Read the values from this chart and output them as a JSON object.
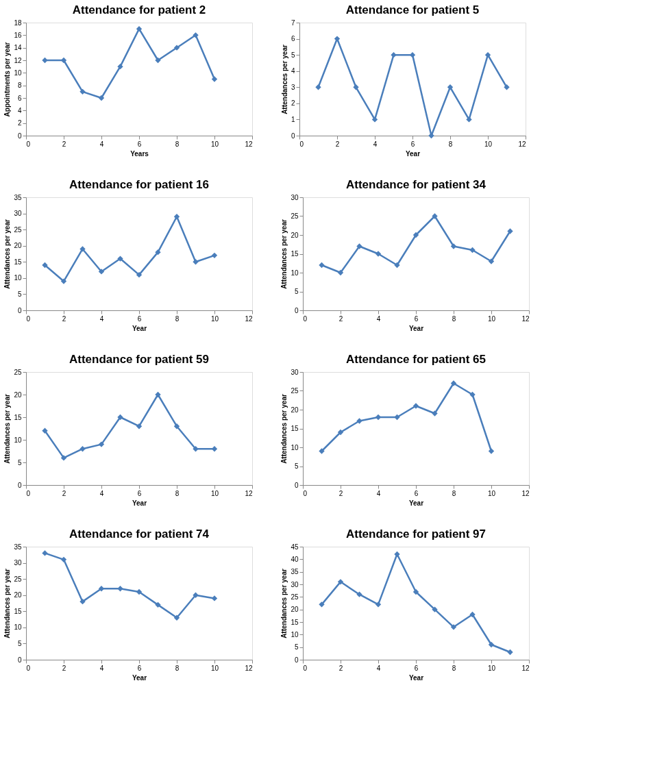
{
  "chart_data": [
    {
      "type": "line",
      "title": "Attendance for patient 2",
      "xlabel": "Years",
      "ylabel": "Appointments per year",
      "x": [
        1,
        2,
        3,
        4,
        5,
        6,
        7,
        8,
        9,
        10
      ],
      "series": [
        {
          "color": "#4a7ebb",
          "values": [
            12,
            12,
            7,
            6,
            11,
            17,
            12,
            14,
            16,
            9
          ]
        }
      ],
      "xlim": [
        0,
        12
      ],
      "xticks": [
        0,
        2,
        4,
        6,
        8,
        10,
        12
      ],
      "ylim": [
        0,
        18
      ],
      "yticks": [
        0,
        2,
        4,
        6,
        8,
        10,
        12,
        14,
        16,
        18
      ],
      "grid": false,
      "marker": "diamond",
      "line_style": "solid"
    },
    {
      "type": "line",
      "title": "Attendance for patient 5",
      "xlabel": "Year",
      "ylabel": "Attendances per year",
      "x": [
        1,
        2,
        3,
        4,
        5,
        6,
        7,
        8,
        9,
        10,
        11
      ],
      "series": [
        {
          "color": "#4a7ebb",
          "values": [
            3,
            6,
            3,
            1,
            5,
            5,
            0,
            3,
            1,
            5,
            3
          ]
        }
      ],
      "xlim": [
        0,
        12
      ],
      "xticks": [
        0,
        2,
        4,
        6,
        8,
        10,
        12
      ],
      "ylim": [
        0,
        7
      ],
      "yticks": [
        0,
        1,
        2,
        3,
        4,
        5,
        6,
        7
      ],
      "grid": false,
      "marker": "diamond",
      "line_style": "solid"
    },
    {
      "type": "line",
      "title": "Attendance for patient 16",
      "xlabel": "Year",
      "ylabel": "Attendances per year",
      "x": [
        1,
        2,
        3,
        4,
        5,
        6,
        7,
        8,
        9,
        10
      ],
      "series": [
        {
          "color": "#4a7ebb",
          "values": [
            14,
            9,
            19,
            12,
            16,
            11,
            18,
            29,
            15,
            17
          ]
        }
      ],
      "xlim": [
        0,
        12
      ],
      "xticks": [
        0,
        2,
        4,
        6,
        8,
        10,
        12
      ],
      "ylim": [
        0,
        35
      ],
      "yticks": [
        0,
        5,
        10,
        15,
        20,
        25,
        30,
        35
      ],
      "grid": false,
      "marker": "diamond",
      "line_style": "solid"
    },
    {
      "type": "line",
      "title": "Attendance for patient 34",
      "xlabel": "Year",
      "ylabel": "Attendances per year",
      "x": [
        1,
        2,
        3,
        4,
        5,
        6,
        7,
        8,
        9,
        10,
        11
      ],
      "series": [
        {
          "color": "#4a7ebb",
          "values": [
            12,
            10,
            17,
            15,
            12,
            20,
            25,
            17,
            16,
            13,
            21
          ]
        }
      ],
      "xlim": [
        0,
        12
      ],
      "xticks": [
        0,
        2,
        4,
        6,
        8,
        10,
        12
      ],
      "ylim": [
        0,
        30
      ],
      "yticks": [
        0,
        5,
        10,
        15,
        20,
        25,
        30
      ],
      "grid": false,
      "marker": "diamond",
      "line_style": "solid"
    },
    {
      "type": "line",
      "title": "Attendance for patient 59",
      "xlabel": "Year",
      "ylabel": "Attendances per year",
      "x": [
        1,
        2,
        3,
        4,
        5,
        6,
        7,
        8,
        9,
        10
      ],
      "series": [
        {
          "color": "#4a7ebb",
          "values": [
            12,
            6,
            8,
            9,
            15,
            13,
            20,
            13,
            8,
            8
          ]
        }
      ],
      "xlim": [
        0,
        12
      ],
      "xticks": [
        0,
        2,
        4,
        6,
        8,
        10,
        12
      ],
      "ylim": [
        0,
        25
      ],
      "yticks": [
        0,
        5,
        10,
        15,
        20,
        25
      ],
      "grid": false,
      "marker": "diamond",
      "line_style": "solid"
    },
    {
      "type": "line",
      "title": "Attendance for patient 65",
      "xlabel": "Year",
      "ylabel": "Attendances per year",
      "x": [
        1,
        2,
        3,
        4,
        5,
        6,
        7,
        8,
        9,
        10
      ],
      "series": [
        {
          "color": "#4a7ebb",
          "values": [
            9,
            14,
            17,
            18,
            18,
            21,
            19,
            27,
            24,
            9
          ]
        }
      ],
      "xlim": [
        0,
        12
      ],
      "xticks": [
        0,
        2,
        4,
        6,
        8,
        10,
        12
      ],
      "ylim": [
        0,
        30
      ],
      "yticks": [
        0,
        5,
        10,
        15,
        20,
        25,
        30
      ],
      "grid": false,
      "marker": "diamond",
      "line_style": "solid"
    },
    {
      "type": "line",
      "title": "Attendance for patient 74",
      "xlabel": "Year",
      "ylabel": "Attendances per year",
      "x": [
        1,
        2,
        3,
        4,
        5,
        6,
        7,
        8,
        9,
        10
      ],
      "series": [
        {
          "color": "#4a7ebb",
          "values": [
            33,
            31,
            18,
            22,
            22,
            21,
            17,
            13,
            20,
            19
          ]
        }
      ],
      "xlim": [
        0,
        12
      ],
      "xticks": [
        0,
        2,
        4,
        6,
        8,
        10,
        12
      ],
      "ylim": [
        0,
        35
      ],
      "yticks": [
        0,
        5,
        10,
        15,
        20,
        25,
        30,
        35
      ],
      "grid": false,
      "marker": "diamond",
      "line_style": "solid"
    },
    {
      "type": "line",
      "title": "Attendance for patient 97",
      "xlabel": "Year",
      "ylabel": "Attendances per year",
      "x": [
        1,
        2,
        3,
        4,
        5,
        6,
        7,
        8,
        9,
        10,
        11
      ],
      "series": [
        {
          "color": "#4a7ebb",
          "values": [
            22,
            31,
            26,
            22,
            42,
            27,
            20,
            13,
            18,
            6,
            3
          ]
        }
      ],
      "xlim": [
        0,
        12
      ],
      "xticks": [
        0,
        2,
        4,
        6,
        8,
        10,
        12
      ],
      "ylim": [
        0,
        45
      ],
      "yticks": [
        0,
        5,
        10,
        15,
        20,
        25,
        30,
        35,
        40,
        45
      ],
      "grid": false,
      "marker": "diamond",
      "line_style": "solid"
    }
  ]
}
